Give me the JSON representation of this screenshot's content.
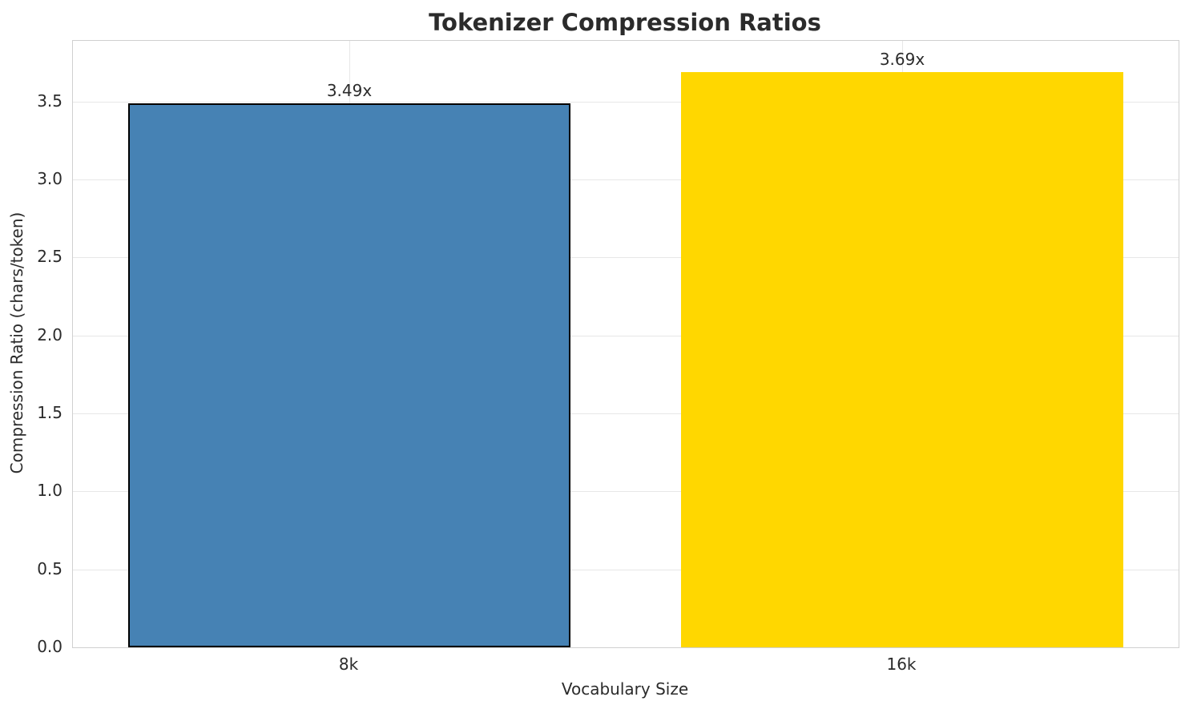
{
  "chart_data": {
    "type": "bar",
    "title": "Tokenizer Compression Ratios",
    "xlabel": "Vocabulary Size",
    "ylabel": "Compression Ratio (chars/token)",
    "categories": [
      "8k",
      "16k"
    ],
    "values": [
      3.49,
      3.69
    ],
    "bar_labels": [
      "3.49x",
      "3.69x"
    ],
    "bar_colors": [
      "#4682B4",
      "#FFD700"
    ],
    "bar_edge_colors": [
      "#000000",
      "none"
    ],
    "yticks": [
      0.0,
      0.5,
      1.0,
      1.5,
      2.0,
      2.5,
      3.0,
      3.5
    ],
    "ytick_labels": [
      "0.0",
      "0.5",
      "1.0",
      "1.5",
      "2.0",
      "2.5",
      "3.0",
      "3.5"
    ],
    "ylim": [
      0,
      3.89
    ],
    "grid": true,
    "legend": "none"
  },
  "style": {
    "text_color": "#2b2b2b",
    "grid_color": "#e7e7e7",
    "spine_color": "#d0d0d0",
    "background": "#ffffff"
  }
}
